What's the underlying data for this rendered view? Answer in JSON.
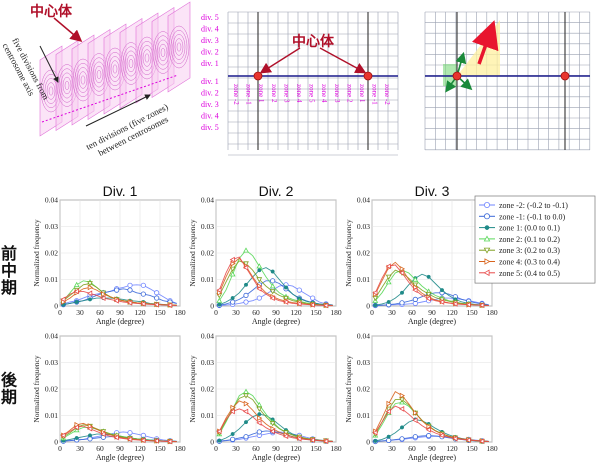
{
  "top": {
    "centrosome_label": "中心体",
    "axis_left": [
      "five divisions from",
      "centrosome axis"
    ],
    "axis_bottom": [
      "ten divisions (five zones)",
      "between centrosomes"
    ],
    "div_labels_up": [
      "div. 5",
      "div. 4",
      "div. 3",
      "div. 2",
      "div. 1"
    ],
    "div_labels_down": [
      "div. 1",
      "div. 2",
      "div. 3",
      "div. 4",
      "div. 5"
    ],
    "zone_labels": [
      "zone -2",
      "zone -1",
      "zone 1",
      "zone 2",
      "zone 3",
      "zone 4",
      "zone 5",
      "zone 4",
      "zone 3",
      "zone 2",
      "zone 1",
      "zone -1",
      "zone -2"
    ],
    "colors": {
      "magenta": "#dd00dd",
      "crimson": "#b0102a",
      "navy": "#1a1a8c",
      "marker": "#e8352e",
      "grid": "#9aa0b0"
    }
  },
  "column_titles": [
    "Div. 1",
    "Div. 2",
    "Div. 3"
  ],
  "row_labels": [
    "前中期",
    "後期"
  ],
  "legend": [
    {
      "label": "zone -2: (-0.2 to -0.1)",
      "color": "#6f84ff",
      "marker": "circle-open"
    },
    {
      "label": "zone -1: (-0.1 to 0.0)",
      "color": "#3a68d8",
      "marker": "circle-open"
    },
    {
      "label": "zone 1: (0.0 to 0.1)",
      "color": "#1f8a88",
      "marker": "dot"
    },
    {
      "label": "zone 2: (0.1 to 0.2)",
      "color": "#5ad85a",
      "marker": "triangle-up-open"
    },
    {
      "label": "zone 3: (0.2 to 0.3)",
      "color": "#7fa020",
      "marker": "triangle-down-open"
    },
    {
      "label": "zone 4: (0.3 to 0.4)",
      "color": "#d8641e",
      "marker": "triangle-right-open"
    },
    {
      "label": "zone 5: (0.4 to 0.5)",
      "color": "#e84a4a",
      "marker": "triangle-left-open"
    }
  ],
  "chart_data": {
    "type": "line",
    "xlabel": "Angle (degree)",
    "ylabel": "Normalized frequency",
    "xlim": [
      0,
      180
    ],
    "ylim": [
      0,
      0.04
    ],
    "xticks": [
      "0",
      "30",
      "60",
      "90",
      "120",
      "150",
      "180"
    ],
    "yticks": [
      "0",
      "0.01",
      "0.02",
      "0.03",
      "0.04"
    ],
    "x": [
      5,
      15,
      25,
      35,
      45,
      55,
      65,
      75,
      85,
      95,
      105,
      115,
      125,
      135,
      145,
      155,
      165,
      175
    ],
    "grid": true,
    "panels": [
      {
        "row": "前中期",
        "col": "Div. 1",
        "series": [
          [
            0.0008,
            0.0015,
            0.002,
            0.003,
            0.004,
            0.0045,
            0.005,
            0.0055,
            0.0065,
            0.007,
            0.0078,
            0.008,
            0.0078,
            0.0065,
            0.005,
            0.0035,
            0.002,
            0.001
          ],
          [
            0.0005,
            0.001,
            0.0015,
            0.002,
            0.003,
            0.004,
            0.005,
            0.0055,
            0.006,
            0.0065,
            0.006,
            0.005,
            0.0045,
            0.004,
            0.003,
            0.002,
            0.0015,
            0.001
          ],
          [
            0.0005,
            0.001,
            0.0015,
            0.002,
            0.0025,
            0.003,
            0.003,
            0.003,
            0.0028,
            0.0025,
            0.002,
            0.0018,
            0.0015,
            0.001,
            0.0008,
            0.0006,
            0.0004,
            0.0003
          ],
          [
            0.002,
            0.005,
            0.008,
            0.0095,
            0.009,
            0.007,
            0.005,
            0.0035,
            0.0025,
            0.002,
            0.0015,
            0.0012,
            0.001,
            0.0008,
            0.0006,
            0.0005,
            0.0004,
            0.0003
          ],
          [
            0.002,
            0.004,
            0.006,
            0.008,
            0.0085,
            0.007,
            0.005,
            0.0035,
            0.0025,
            0.002,
            0.0015,
            0.0012,
            0.001,
            0.0008,
            0.0006,
            0.0005,
            0.0004,
            0.0003
          ],
          [
            0.0015,
            0.003,
            0.005,
            0.0065,
            0.007,
            0.006,
            0.0045,
            0.0035,
            0.0025,
            0.002,
            0.0015,
            0.0012,
            0.001,
            0.0008,
            0.0006,
            0.0005,
            0.0004,
            0.0003
          ],
          [
            0.0025,
            0.0045,
            0.0055,
            0.0055,
            0.0048,
            0.004,
            0.003,
            0.0025,
            0.002,
            0.0015,
            0.0012,
            0.001,
            0.0008,
            0.0006,
            0.0005,
            0.0004,
            0.0003,
            0.0002
          ]
        ]
      },
      {
        "row": "前中期",
        "col": "Div. 2",
        "series": [
          [
            0.0002,
            0.0004,
            0.0006,
            0.001,
            0.0015,
            0.002,
            0.003,
            0.0045,
            0.006,
            0.0075,
            0.008,
            0.0075,
            0.006,
            0.0045,
            0.003,
            0.0015,
            0.0008,
            0.0004
          ],
          [
            0.0003,
            0.0008,
            0.0015,
            0.0025,
            0.004,
            0.006,
            0.008,
            0.0095,
            0.0095,
            0.0085,
            0.0065,
            0.0045,
            0.003,
            0.002,
            0.0012,
            0.0008,
            0.0005,
            0.0003
          ],
          [
            0.0005,
            0.0015,
            0.003,
            0.005,
            0.008,
            0.011,
            0.0135,
            0.0145,
            0.013,
            0.01,
            0.007,
            0.0045,
            0.0028,
            0.0018,
            0.0012,
            0.0008,
            0.0005,
            0.0003
          ],
          [
            0.002,
            0.006,
            0.012,
            0.018,
            0.021,
            0.019,
            0.015,
            0.011,
            0.0075,
            0.005,
            0.0035,
            0.0025,
            0.0018,
            0.0012,
            0.0008,
            0.0005,
            0.0003,
            0.0002
          ],
          [
            0.004,
            0.009,
            0.014,
            0.017,
            0.016,
            0.0135,
            0.01,
            0.0075,
            0.0055,
            0.004,
            0.003,
            0.002,
            0.0015,
            0.001,
            0.0007,
            0.0005,
            0.0003,
            0.0002
          ],
          [
            0.005,
            0.011,
            0.016,
            0.018,
            0.015,
            0.011,
            0.0075,
            0.005,
            0.0035,
            0.0025,
            0.0018,
            0.0013,
            0.001,
            0.0007,
            0.0005,
            0.0004,
            0.0003,
            0.0002
          ],
          [
            0.006,
            0.0125,
            0.0175,
            0.0185,
            0.0145,
            0.0105,
            0.0065,
            0.0045,
            0.003,
            0.002,
            0.0015,
            0.001,
            0.0008,
            0.0006,
            0.0004,
            0.0003,
            0.0002,
            0.0001
          ]
        ]
      },
      {
        "row": "前中期",
        "col": "Div. 3",
        "series": [
          [
            0.0002,
            0.0003,
            0.0004,
            0.0005,
            0.0006,
            0.0008,
            0.001,
            0.0015,
            0.002,
            0.0025,
            0.003,
            0.003,
            0.0028,
            0.0025,
            0.002,
            0.0015,
            0.001,
            0.0005
          ],
          [
            0.0002,
            0.0003,
            0.0005,
            0.0008,
            0.0012,
            0.0018,
            0.0025,
            0.0035,
            0.0045,
            0.005,
            0.005,
            0.0045,
            0.0035,
            0.0025,
            0.0018,
            0.0012,
            0.0008,
            0.0004
          ],
          [
            0.0003,
            0.0008,
            0.0015,
            0.003,
            0.005,
            0.008,
            0.0105,
            0.012,
            0.011,
            0.0085,
            0.006,
            0.004,
            0.0025,
            0.0015,
            0.001,
            0.0006,
            0.0004,
            0.0002
          ],
          [
            0.002,
            0.005,
            0.009,
            0.0125,
            0.0135,
            0.0125,
            0.01,
            0.0075,
            0.0055,
            0.004,
            0.003,
            0.002,
            0.0015,
            0.001,
            0.0007,
            0.0005,
            0.0003,
            0.0002
          ],
          [
            0.003,
            0.007,
            0.011,
            0.0135,
            0.0125,
            0.0105,
            0.008,
            0.006,
            0.0045,
            0.0032,
            0.0024,
            0.0018,
            0.0013,
            0.001,
            0.0007,
            0.0005,
            0.0003,
            0.0002
          ],
          [
            0.0045,
            0.0095,
            0.0145,
            0.0165,
            0.014,
            0.01,
            0.007,
            0.0048,
            0.0033,
            0.0023,
            0.0017,
            0.0012,
            0.0009,
            0.0007,
            0.0005,
            0.0004,
            0.0003,
            0.0002
          ],
          [
            0.005,
            0.0105,
            0.015,
            0.0155,
            0.0125,
            0.009,
            0.006,
            0.004,
            0.0028,
            0.002,
            0.0015,
            0.0011,
            0.0008,
            0.0006,
            0.0005,
            0.0004,
            0.0003,
            0.0002
          ]
        ]
      },
      {
        "row": "後期",
        "col": "Div. 1",
        "series": [
          [
            0.0004,
            0.0006,
            0.0008,
            0.001,
            0.0015,
            0.002,
            0.0025,
            0.003,
            0.0035,
            0.0038,
            0.0035,
            0.003,
            0.0025,
            0.0018,
            0.0012,
            0.0008,
            0.0005,
            0.0003
          ],
          [
            0.0003,
            0.0005,
            0.0008,
            0.001,
            0.0012,
            0.0015,
            0.0018,
            0.002,
            0.002,
            0.0018,
            0.0015,
            0.0012,
            0.001,
            0.0008,
            0.0006,
            0.0004,
            0.0003,
            0.0002
          ],
          [
            0.0005,
            0.001,
            0.0015,
            0.002,
            0.0025,
            0.003,
            0.003,
            0.0028,
            0.0025,
            0.002,
            0.0016,
            0.0012,
            0.001,
            0.0008,
            0.0006,
            0.0004,
            0.0003,
            0.0002
          ],
          [
            0.0015,
            0.003,
            0.0045,
            0.0055,
            0.0055,
            0.0048,
            0.004,
            0.0032,
            0.0025,
            0.002,
            0.0015,
            0.0012,
            0.0009,
            0.0007,
            0.0005,
            0.0004,
            0.0003,
            0.0002
          ],
          [
            0.002,
            0.0035,
            0.0055,
            0.0065,
            0.006,
            0.005,
            0.004,
            0.003,
            0.0024,
            0.0018,
            0.0014,
            0.0011,
            0.0008,
            0.0006,
            0.0005,
            0.0004,
            0.0003,
            0.0002
          ],
          [
            0.0025,
            0.0045,
            0.0065,
            0.007,
            0.006,
            0.0048,
            0.0036,
            0.0027,
            0.002,
            0.0015,
            0.0012,
            0.0009,
            0.0007,
            0.0005,
            0.0004,
            0.0003,
            0.0002,
            0.0001
          ],
          [
            0.0025,
            0.004,
            0.0055,
            0.006,
            0.005,
            0.004,
            0.003,
            0.0022,
            0.0017,
            0.0013,
            0.001,
            0.0008,
            0.0006,
            0.0005,
            0.0004,
            0.0003,
            0.0002,
            0.0001
          ]
        ]
      },
      {
        "row": "後期",
        "col": "Div. 2",
        "series": [
          [
            0.0003,
            0.0005,
            0.0008,
            0.001,
            0.0015,
            0.002,
            0.0025,
            0.003,
            0.0035,
            0.0038,
            0.0035,
            0.003,
            0.0025,
            0.0018,
            0.0012,
            0.0008,
            0.0005,
            0.0003
          ],
          [
            0.0003,
            0.0006,
            0.001,
            0.0015,
            0.002,
            0.003,
            0.0038,
            0.0042,
            0.004,
            0.0035,
            0.0028,
            0.002,
            0.0015,
            0.001,
            0.0007,
            0.0005,
            0.0003,
            0.0002
          ],
          [
            0.0005,
            0.0015,
            0.003,
            0.005,
            0.0075,
            0.0095,
            0.0105,
            0.01,
            0.0085,
            0.0065,
            0.0045,
            0.003,
            0.002,
            0.0013,
            0.0009,
            0.0006,
            0.0004,
            0.0002
          ],
          [
            0.003,
            0.0075,
            0.0125,
            0.0175,
            0.019,
            0.0175,
            0.014,
            0.0105,
            0.0075,
            0.0052,
            0.0037,
            0.0026,
            0.0018,
            0.0013,
            0.0009,
            0.0006,
            0.0004,
            0.0002
          ],
          [
            0.0035,
            0.008,
            0.0125,
            0.0165,
            0.0175,
            0.016,
            0.0125,
            0.0095,
            0.007,
            0.005,
            0.0036,
            0.0026,
            0.0019,
            0.0014,
            0.001,
            0.0007,
            0.0005,
            0.0003
          ],
          [
            0.004,
            0.009,
            0.013,
            0.0155,
            0.0145,
            0.012,
            0.009,
            0.0068,
            0.005,
            0.0037,
            0.0027,
            0.002,
            0.0015,
            0.0011,
            0.0008,
            0.0006,
            0.0004,
            0.0002
          ],
          [
            0.004,
            0.0085,
            0.0115,
            0.0125,
            0.0115,
            0.0095,
            0.0072,
            0.0054,
            0.004,
            0.003,
            0.0022,
            0.0016,
            0.0012,
            0.0009,
            0.0007,
            0.0005,
            0.0003,
            0.0002
          ]
        ]
      },
      {
        "row": "後期",
        "col": "Div. 3",
        "series": [
          [
            0.0002,
            0.0004,
            0.0006,
            0.0008,
            0.001,
            0.0013,
            0.0016,
            0.0019,
            0.0021,
            0.0022,
            0.0021,
            0.0019,
            0.0016,
            0.0013,
            0.001,
            0.0007,
            0.0005,
            0.0003
          ],
          [
            0.0002,
            0.0004,
            0.0006,
            0.0009,
            0.0012,
            0.0016,
            0.002,
            0.0023,
            0.0024,
            0.0023,
            0.002,
            0.0016,
            0.0012,
            0.0009,
            0.0006,
            0.0004,
            0.0003,
            0.0002
          ],
          [
            0.0004,
            0.001,
            0.002,
            0.0035,
            0.0055,
            0.0075,
            0.0085,
            0.008,
            0.0068,
            0.0052,
            0.0038,
            0.0027,
            0.0019,
            0.0013,
            0.0009,
            0.0006,
            0.0004,
            0.0002
          ],
          [
            0.0025,
            0.0065,
            0.011,
            0.0145,
            0.015,
            0.0135,
            0.011,
            0.0082,
            0.006,
            0.0043,
            0.0031,
            0.0022,
            0.0016,
            0.0011,
            0.0008,
            0.0005,
            0.0003,
            0.0002
          ],
          [
            0.003,
            0.0075,
            0.0125,
            0.016,
            0.016,
            0.014,
            0.011,
            0.0082,
            0.006,
            0.0043,
            0.0031,
            0.0022,
            0.0016,
            0.0011,
            0.0008,
            0.0005,
            0.0003,
            0.0002
          ],
          [
            0.004,
            0.009,
            0.0145,
            0.019,
            0.0175,
            0.0145,
            0.011,
            0.008,
            0.0058,
            0.0042,
            0.003,
            0.0022,
            0.0016,
            0.0012,
            0.0009,
            0.0006,
            0.0004,
            0.0002
          ],
          [
            0.0035,
            0.0075,
            0.0115,
            0.0135,
            0.0125,
            0.0105,
            0.0082,
            0.0062,
            0.0046,
            0.0034,
            0.0025,
            0.0018,
            0.0013,
            0.001,
            0.0007,
            0.0005,
            0.0003,
            0.0002
          ]
        ]
      }
    ]
  }
}
